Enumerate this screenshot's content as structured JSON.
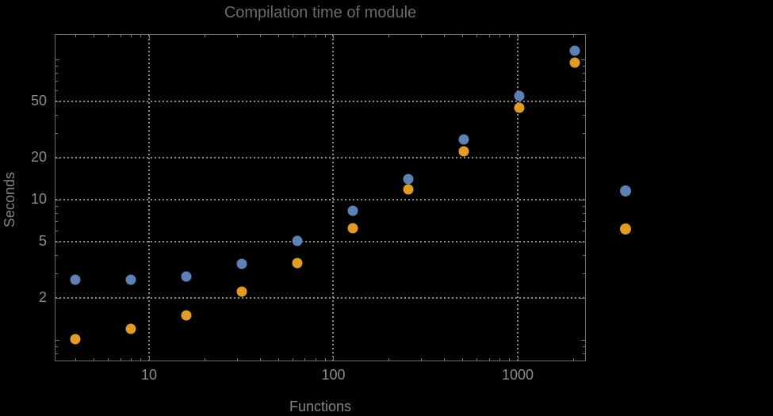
{
  "chart_data": {
    "type": "scatter",
    "title": "Compilation time of module",
    "xlabel": "Functions",
    "ylabel": "Seconds",
    "xscale": "log",
    "yscale": "log",
    "xlim": [
      3.077,
      2344
    ],
    "ylim": [
      0.705,
      151.4
    ],
    "grid": "dotted",
    "grid_x": [
      10,
      100,
      1000
    ],
    "grid_y": [
      2,
      5,
      10,
      20,
      50
    ],
    "x": [
      4,
      8,
      16,
      32,
      64,
      128,
      256,
      512,
      1024,
      2048
    ],
    "series": [
      {
        "name": "",
        "color": "#5E81B5",
        "marker": "disk",
        "values": [
          2.7,
          2.7,
          2.85,
          3.5,
          5.1,
          8.3,
          14.0,
          26.8,
          55,
          115
        ]
      },
      {
        "name": "",
        "color": "#E19C24",
        "marker": "disk",
        "values": [
          1.02,
          1.2,
          1.5,
          2.2,
          3.55,
          6.3,
          11.8,
          22.2,
          45,
          95
        ]
      }
    ],
    "x_ticks": {
      "major": [
        10,
        100,
        1000
      ],
      "labels": [
        "10",
        "100",
        "1000"
      ],
      "minor": [
        4,
        5,
        6,
        7,
        8,
        9,
        20,
        30,
        40,
        50,
        60,
        70,
        80,
        90,
        200,
        300,
        400,
        500,
        600,
        700,
        800,
        900,
        2000
      ]
    },
    "y_ticks": {
      "major": [
        2,
        5,
        10,
        20,
        50
      ],
      "labels": [
        "2",
        "5",
        "10",
        "20",
        "50"
      ],
      "mid": [
        1,
        100
      ],
      "minor": [
        0.8,
        0.9,
        3,
        4,
        6,
        7,
        8,
        9,
        30,
        40,
        60,
        70,
        80,
        90
      ]
    },
    "legend": {
      "position": "right",
      "items": [
        {
          "label": "",
          "color": "#5E81B5"
        },
        {
          "label": "",
          "color": "#E19C24"
        }
      ]
    }
  },
  "colors": {
    "background": "#000000",
    "frame": "#707070",
    "gridline": "#8c8c8c",
    "title_text": "#6b6b6b",
    "tick_label_text": "#8b8b8b",
    "axis_label_text": "#858585",
    "series_blue": "#5E81B5",
    "series_orange": "#E19C24"
  }
}
